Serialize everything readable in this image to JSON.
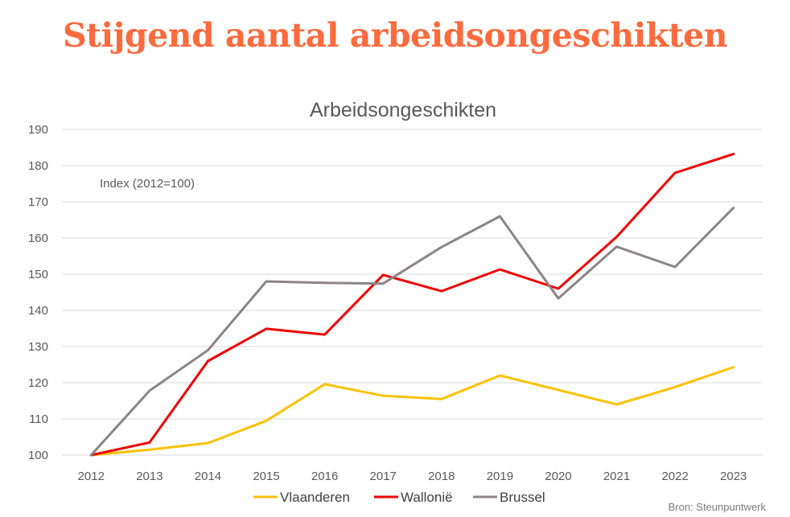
{
  "headline": "Stijgend aantal arbeidsongeschikten",
  "source": "Bron: Steunpuntwerk",
  "colors": {
    "headline": "#ff6a3d",
    "grid": "#d9d9d9"
  },
  "chart_data": {
    "type": "line",
    "title": "Arbeidsongeschikten",
    "annotation": "Index (2012=100)",
    "xlabel": "",
    "ylabel": "",
    "x": [
      "2012",
      "2013",
      "2014",
      "2015",
      "2016",
      "2017",
      "2018",
      "2019",
      "2020",
      "2021",
      "2022",
      "2023"
    ],
    "ylim": [
      100,
      190
    ],
    "yticks": [
      100,
      110,
      120,
      130,
      140,
      150,
      160,
      170,
      180,
      190
    ],
    "grid": true,
    "legend": "bottom",
    "series": [
      {
        "name": "Vlaanderen",
        "color": "#ffc000",
        "values": [
          100,
          101.5,
          103.3,
          109.5,
          119.6,
          116.4,
          115.5,
          122,
          118,
          114,
          118.8,
          124.3
        ]
      },
      {
        "name": "Wallonië",
        "color": "#ee0000",
        "values": [
          100,
          103.5,
          126,
          134.9,
          133.3,
          149.8,
          145.3,
          151.3,
          146,
          160.3,
          178,
          183.2
        ]
      },
      {
        "name": "Brussel",
        "color": "#8c8486",
        "values": [
          100,
          117.8,
          129,
          148,
          147.6,
          147.4,
          157.5,
          166,
          143.3,
          157.6,
          152,
          168.3
        ]
      }
    ]
  }
}
